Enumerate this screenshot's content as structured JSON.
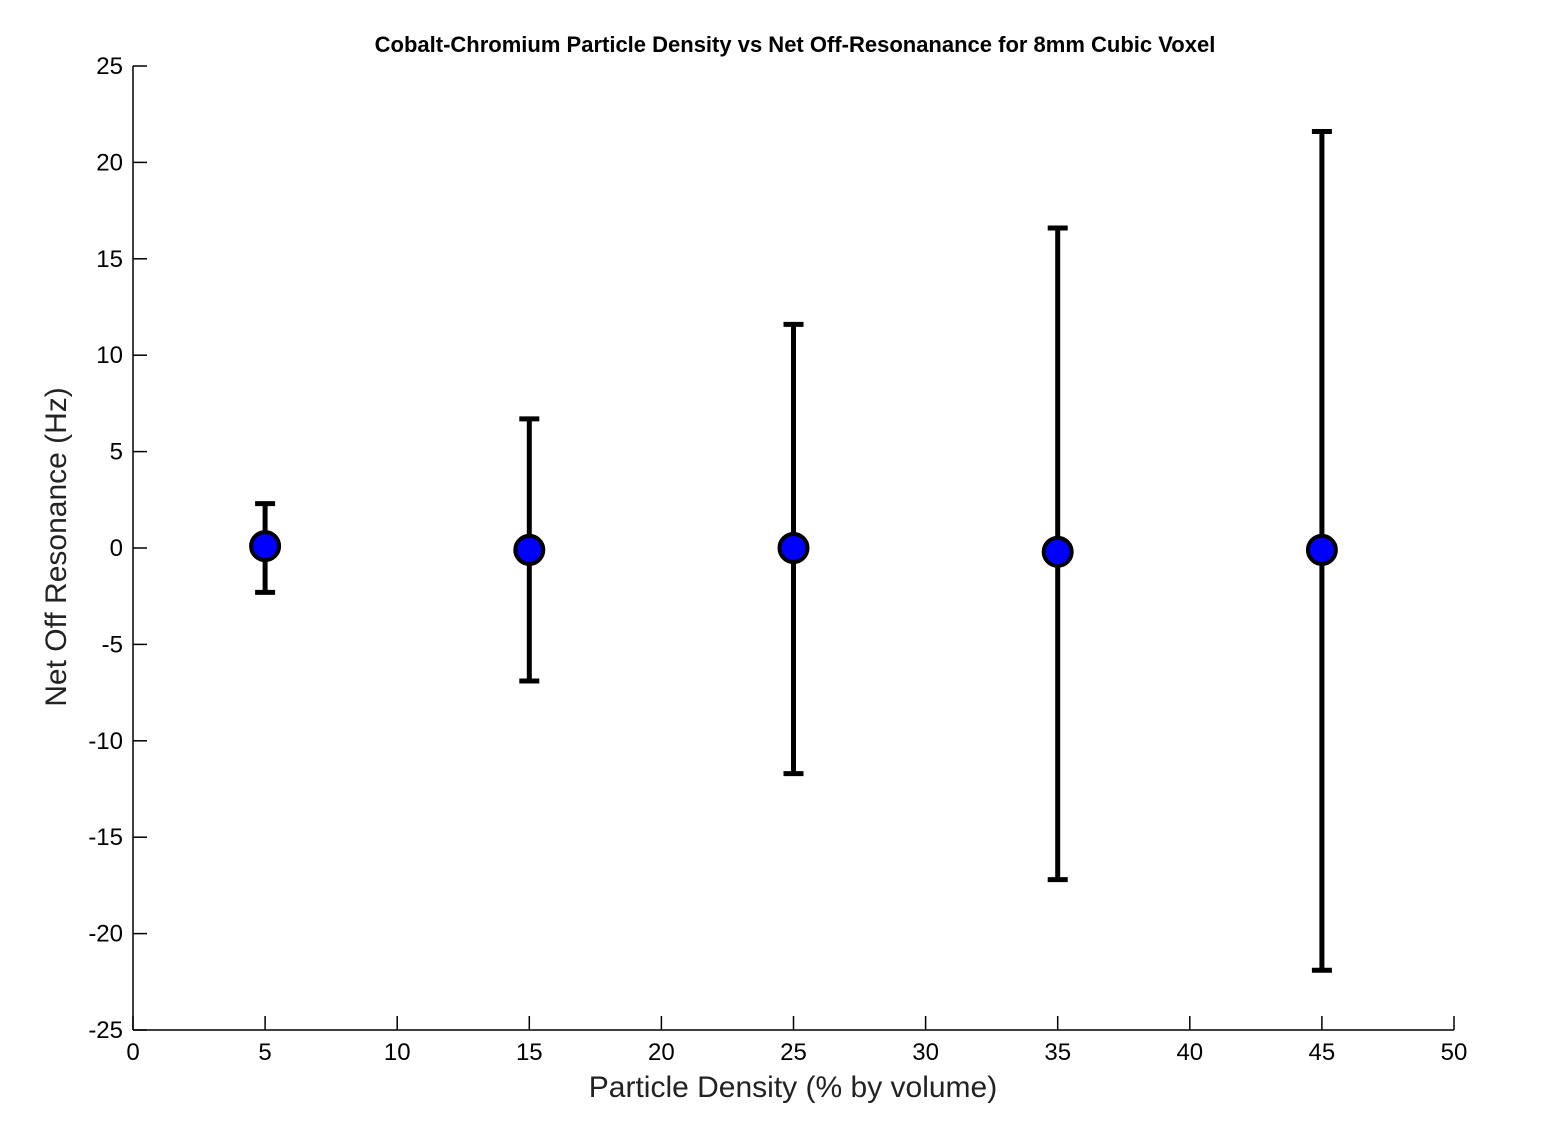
{
  "chart_data": {
    "type": "scatter",
    "title": "Cobalt-Chromium Particle Density vs Net Off-Resonanance for 8mm Cubic Voxel",
    "xlabel": "Particle Density (% by volume)",
    "ylabel": "Net Off Resonance (Hz)",
    "xlim": [
      0,
      50
    ],
    "ylim": [
      -25,
      25
    ],
    "xticks": [
      0,
      5,
      10,
      15,
      20,
      25,
      30,
      35,
      40,
      45,
      50
    ],
    "yticks": [
      25,
      20,
      15,
      10,
      5,
      0,
      -5,
      -10,
      -15,
      -20,
      -25
    ],
    "grid": false,
    "series": [
      {
        "x": [
          5,
          15,
          25,
          35,
          45
        ],
        "y": [
          0.1,
          -0.1,
          0.0,
          -0.2,
          -0.1
        ],
        "error_low": [
          -2.3,
          -6.9,
          -11.7,
          -17.2,
          -21.9
        ],
        "error_high": [
          2.3,
          6.7,
          11.6,
          16.6,
          21.6
        ],
        "marker_color": "#0000ff",
        "error_color": "#000000"
      }
    ]
  }
}
